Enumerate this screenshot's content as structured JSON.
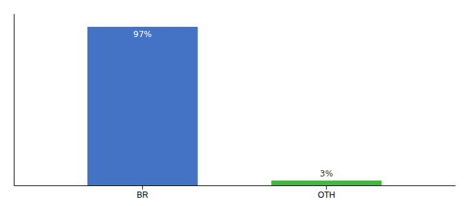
{
  "chart_data": {
    "type": "bar",
    "categories": [
      "BR",
      "OTH"
    ],
    "values": [
      97,
      3
    ],
    "value_labels": [
      "97%",
      "3%"
    ],
    "colors": [
      "#4472c4",
      "#3dbb3d"
    ],
    "ylim": [
      0,
      105
    ],
    "tick_labels": "x",
    "data_labels": true
  }
}
